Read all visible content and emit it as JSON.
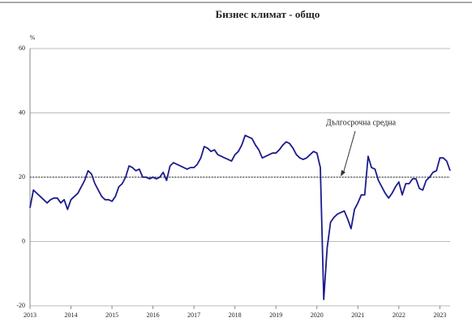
{
  "chart_data": {
    "type": "line",
    "title": "Бизнес климат - общо",
    "ylabel": "%",
    "annotation": "Дългосрочна средна",
    "reference_value": 20,
    "x": [
      2013,
      2013.083,
      2013.167,
      2013.25,
      2013.333,
      2013.417,
      2013.5,
      2013.583,
      2013.667,
      2013.75,
      2013.833,
      2013.917,
      2014,
      2014.083,
      2014.167,
      2014.25,
      2014.333,
      2014.417,
      2014.5,
      2014.583,
      2014.667,
      2014.75,
      2014.833,
      2014.917,
      2015,
      2015.083,
      2015.167,
      2015.25,
      2015.333,
      2015.417,
      2015.5,
      2015.583,
      2015.667,
      2015.75,
      2015.833,
      2015.917,
      2016,
      2016.083,
      2016.167,
      2016.25,
      2016.333,
      2016.417,
      2016.5,
      2016.583,
      2016.667,
      2016.75,
      2016.833,
      2016.917,
      2017,
      2017.083,
      2017.167,
      2017.25,
      2017.333,
      2017.417,
      2017.5,
      2017.583,
      2017.667,
      2017.75,
      2017.833,
      2017.917,
      2018,
      2018.083,
      2018.167,
      2018.25,
      2018.333,
      2018.417,
      2018.5,
      2018.583,
      2018.667,
      2018.75,
      2018.833,
      2018.917,
      2019,
      2019.083,
      2019.167,
      2019.25,
      2019.333,
      2019.417,
      2019.5,
      2019.583,
      2019.667,
      2019.75,
      2019.833,
      2019.917,
      2020,
      2020.083,
      2020.167,
      2020.25,
      2020.333,
      2020.417,
      2020.5,
      2020.583,
      2020.667,
      2020.75,
      2020.833,
      2020.917,
      2021,
      2021.083,
      2021.167,
      2021.25,
      2021.333,
      2021.417,
      2021.5,
      2021.583,
      2021.667,
      2021.75,
      2021.833,
      2021.917,
      2022,
      2022.083,
      2022.167,
      2022.25,
      2022.333,
      2022.417,
      2022.5,
      2022.583,
      2022.667,
      2022.75,
      2022.833,
      2022.917,
      2023,
      2023.083,
      2023.167,
      2023.25
    ],
    "series": [
      {
        "color": "#1c1c8c",
        "values": [
          10.5,
          16,
          15,
          14,
          13,
          12,
          13,
          13.5,
          13.5,
          12,
          13,
          10,
          13,
          14,
          15,
          17,
          19,
          22,
          21,
          18,
          16,
          14,
          13,
          13,
          12.5,
          14,
          17,
          18,
          20,
          23.5,
          23,
          22,
          22.5,
          20,
          20,
          19.5,
          20,
          19.5,
          20,
          21.5,
          19,
          23.5,
          24.5,
          24,
          23.5,
          23,
          22.5,
          23,
          23,
          24,
          26,
          29.5,
          29,
          28,
          28.5,
          27,
          26.5,
          26,
          25.5,
          25,
          27,
          28,
          30,
          33,
          32.5,
          32,
          30,
          28.5,
          26,
          26.5,
          27,
          27.5,
          27.5,
          28.5,
          30,
          31,
          30.5,
          29,
          27,
          26,
          25.5,
          26,
          27,
          28,
          27.5,
          23,
          -18,
          -2,
          6,
          7.5,
          8.5,
          9,
          9.5,
          7,
          4,
          10,
          12,
          14.5,
          14.5,
          26.5,
          23,
          22.5,
          19,
          17,
          15,
          13.5,
          15,
          17,
          18.5,
          14.5,
          18,
          18,
          19.5,
          19.5,
          16.5,
          16,
          19,
          20,
          21.5,
          22,
          26,
          26,
          25,
          22
        ]
      }
    ],
    "xlim": [
      2013,
      2023.25
    ],
    "xticks": [
      2013,
      2014,
      2015,
      2016,
      2017,
      2018,
      2019,
      2020,
      2021,
      2022,
      2023
    ],
    "ylim": [
      -20,
      60
    ],
    "yticks": [
      -20,
      0,
      20,
      40,
      60
    ],
    "grid": true
  }
}
